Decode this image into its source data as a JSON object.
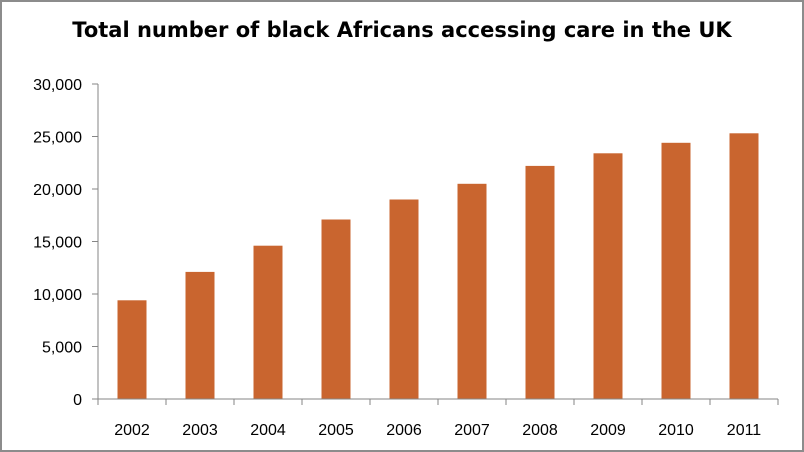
{
  "chart_data": {
    "type": "bar",
    "title": "Total number of black Africans accessing care in the UK",
    "xlabel": "",
    "ylabel": "",
    "categories": [
      "2002",
      "2003",
      "2004",
      "2005",
      "2006",
      "2007",
      "2008",
      "2009",
      "2010",
      "2011"
    ],
    "values": [
      9400,
      12100,
      14600,
      17100,
      19000,
      20500,
      22200,
      23400,
      24400,
      25300
    ],
    "ylim": [
      0,
      30000
    ],
    "yticks": [
      0,
      5000,
      10000,
      15000,
      20000,
      25000,
      30000
    ],
    "ytick_labels": [
      "0",
      "5,000",
      "10,000",
      "15,000",
      "20,000",
      "25,000",
      "30,000"
    ],
    "grid": false,
    "legend": "none",
    "bar_color": "#c9652f",
    "axis_color": "#868686"
  }
}
